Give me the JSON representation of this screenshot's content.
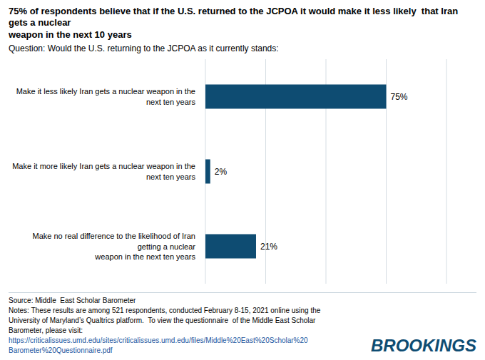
{
  "chart_data": {
    "type": "bar",
    "orientation": "horizontal",
    "title": "75% of respondents believe that if the U.S. returned to the JCPOA it would make it less likely  that Iran gets a nuclear\nweapon in the next 10 years",
    "subtitle": "Question: Would the U.S. returning to the JCPOA as it currently stands:",
    "categories": [
      "Make it less likely Iran gets a nuclear weapon in the next ten years",
      "Make it more likely Iran gets a nuclear weapon in the next ten years",
      "Make no real difference to the likelihood of Iran getting a nuclear\nweapon in the next ten years"
    ],
    "values": [
      75,
      2,
      21
    ],
    "value_labels": [
      "75%",
      "2%",
      "21%"
    ],
    "data_labels": true,
    "color": "#0e4c72",
    "xlim": [
      0,
      100
    ],
    "xticks": [
      0,
      25,
      50,
      75,
      100
    ],
    "grid": true,
    "tick_labels": false,
    "annotations": [
      "Source: Middle  East Scholar Barometer\nNotes: These results are among 521 respondents, conducted February 8-15, 2021 online using the\nUniversity of Maryland’s Qualtrics platform.  To view the questionnaire  of the Middle East Scholar\nBarometer, please visit:",
      "https://criticalissues.umd.edu/sites/criticalissues.umd.edu/files/Middle%20East%20Scholar%20\nBarometer%20Questionnaire.pdf",
      "BROOKINGS"
    ]
  }
}
